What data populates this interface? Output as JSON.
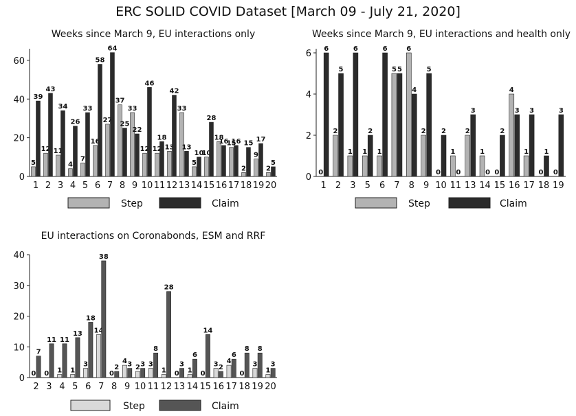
{
  "title": "ERC SOLID COVID Dataset [March 09 - July 21, 2020]",
  "colors": {
    "step_top": "#b3b3b3",
    "claim_top": "#2b2b2b",
    "step_bottom": "#d9d9d9",
    "claim_bottom": "#555555"
  },
  "chart_data": [
    {
      "type": "bar",
      "title": "Weeks since March 9, EU interactions only",
      "xlabel": "",
      "ylabel": "",
      "ylim": [
        0,
        66
      ],
      "yticks": [
        0,
        20,
        40,
        60
      ],
      "categories": [
        "1",
        "2",
        "3",
        "4",
        "5",
        "6",
        "7",
        "8",
        "9",
        "10",
        "11",
        "12",
        "13",
        "14",
        "15",
        "16",
        "17",
        "18",
        "19",
        "20"
      ],
      "series": [
        {
          "name": "Step",
          "values": [
            5,
            12,
            11,
            4,
            7,
            16,
            27,
            37,
            33,
            12,
            12,
            13,
            33,
            5,
            10,
            18,
            15,
            2,
            9,
            2
          ]
        },
        {
          "name": "Claim",
          "values": [
            39,
            43,
            34,
            26,
            33,
            58,
            64,
            25,
            22,
            46,
            18,
            42,
            13,
            10,
            28,
            16,
            16,
            15,
            17,
            5
          ]
        }
      ],
      "legend_position": "bottom"
    },
    {
      "type": "bar",
      "title": "Weeks since March 9, EU interactions and health only",
      "xlabel": "",
      "ylabel": "",
      "ylim": [
        0,
        6.2
      ],
      "yticks": [
        0,
        2,
        4,
        6
      ],
      "categories": [
        "1",
        "2",
        "3",
        "5",
        "6",
        "7",
        "8",
        "9",
        "10",
        "11",
        "13",
        "14",
        "15",
        "16",
        "17",
        "18",
        "19"
      ],
      "series": [
        {
          "name": "Step",
          "values": [
            0,
            2,
            1,
            1,
            1,
            5,
            6,
            2,
            0,
            1,
            2,
            1,
            0,
            4,
            1,
            0,
            0
          ]
        },
        {
          "name": "Claim",
          "values": [
            6,
            5,
            6,
            2,
            6,
            5,
            4,
            5,
            2,
            0,
            3,
            0,
            2,
            3,
            3,
            1,
            3
          ]
        }
      ],
      "legend_position": "bottom"
    },
    {
      "type": "bar",
      "title": "EU interactions on Coronabonds, ESM and RRF",
      "xlabel": "",
      "ylabel": "",
      "ylim": [
        0,
        40
      ],
      "yticks": [
        0,
        10,
        20,
        30,
        40
      ],
      "categories": [
        "2",
        "3",
        "4",
        "5",
        "6",
        "7",
        "8",
        "9",
        "10",
        "11",
        "12",
        "13",
        "14",
        "15",
        "16",
        "17",
        "18",
        "19",
        "20"
      ],
      "series": [
        {
          "name": "Step",
          "values": [
            0,
            0,
            1,
            1,
            3,
            14,
            0,
            4,
            2,
            3,
            1,
            0,
            1,
            0,
            3,
            4,
            0,
            3,
            1
          ]
        },
        {
          "name": "Claim",
          "values": [
            7,
            11,
            11,
            13,
            18,
            38,
            2,
            3,
            3,
            8,
            28,
            3,
            6,
            14,
            2,
            6,
            8,
            8,
            3
          ]
        }
      ],
      "legend_position": "bottom"
    }
  ]
}
